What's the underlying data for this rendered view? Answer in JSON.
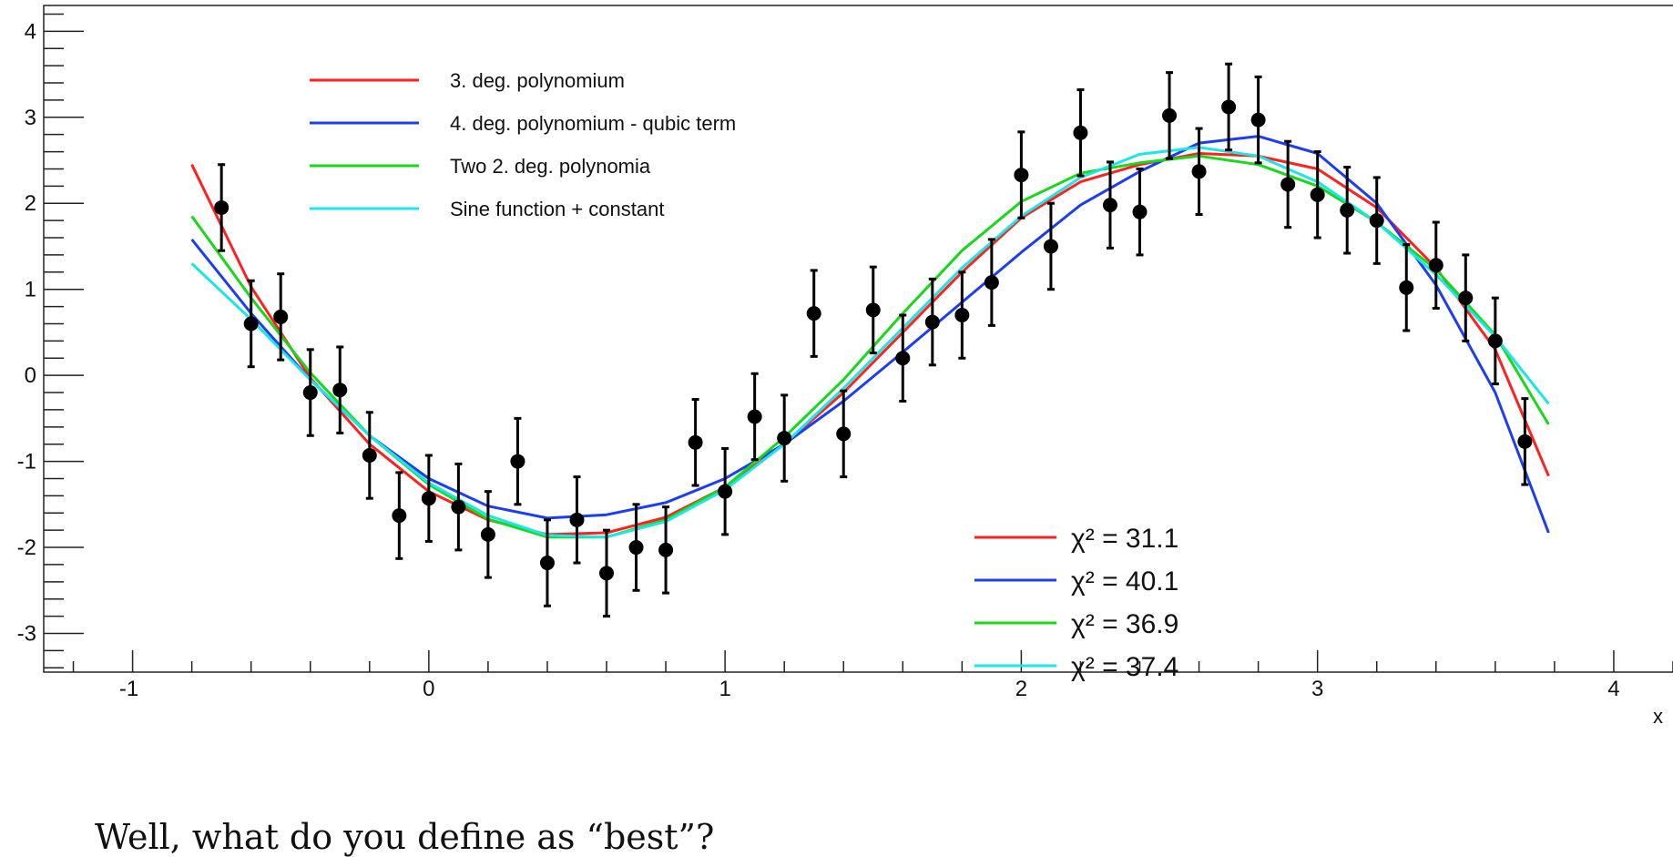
{
  "chart_data": {
    "type": "scatter",
    "x_ticks": [
      -1,
      0,
      1,
      2,
      3,
      4
    ],
    "y_ticks": [
      -3,
      -2,
      -1,
      0,
      1,
      2,
      3,
      4
    ],
    "xlim": [
      -1.3,
      4.2
    ],
    "ylim": [
      -3.45,
      4.3
    ],
    "xlabel": "x",
    "grid": false,
    "legend_placement": "top-left",
    "data_points": [
      {
        "x": -0.7,
        "y": 1.95,
        "err": 0.5
      },
      {
        "x": -0.6,
        "y": 0.6,
        "err": 0.5
      },
      {
        "x": -0.5,
        "y": 0.68,
        "err": 0.5
      },
      {
        "x": -0.4,
        "y": -0.2,
        "err": 0.5
      },
      {
        "x": -0.3,
        "y": -0.17,
        "err": 0.5
      },
      {
        "x": -0.2,
        "y": -0.93,
        "err": 0.5
      },
      {
        "x": -0.1,
        "y": -1.63,
        "err": 0.5
      },
      {
        "x": 0.0,
        "y": -1.43,
        "err": 0.5
      },
      {
        "x": 0.1,
        "y": -1.53,
        "err": 0.5
      },
      {
        "x": 0.2,
        "y": -1.85,
        "err": 0.5
      },
      {
        "x": 0.3,
        "y": -1.0,
        "err": 0.5
      },
      {
        "x": 0.4,
        "y": -2.18,
        "err": 0.5
      },
      {
        "x": 0.5,
        "y": -1.68,
        "err": 0.5
      },
      {
        "x": 0.6,
        "y": -2.3,
        "err": 0.5
      },
      {
        "x": 0.7,
        "y": -2.0,
        "err": 0.5
      },
      {
        "x": 0.8,
        "y": -2.03,
        "err": 0.5
      },
      {
        "x": 0.9,
        "y": -0.78,
        "err": 0.5
      },
      {
        "x": 1.0,
        "y": -1.35,
        "err": 0.5
      },
      {
        "x": 1.1,
        "y": -0.48,
        "err": 0.5
      },
      {
        "x": 1.2,
        "y": -0.73,
        "err": 0.5
      },
      {
        "x": 1.3,
        "y": 0.72,
        "err": 0.5
      },
      {
        "x": 1.4,
        "y": -0.68,
        "err": 0.5
      },
      {
        "x": 1.5,
        "y": 0.76,
        "err": 0.5
      },
      {
        "x": 1.6,
        "y": 0.2,
        "err": 0.5
      },
      {
        "x": 1.7,
        "y": 0.62,
        "err": 0.5
      },
      {
        "x": 1.8,
        "y": 0.7,
        "err": 0.5
      },
      {
        "x": 1.9,
        "y": 1.08,
        "err": 0.5
      },
      {
        "x": 2.0,
        "y": 2.33,
        "err": 0.5
      },
      {
        "x": 2.1,
        "y": 1.5,
        "err": 0.5
      },
      {
        "x": 2.2,
        "y": 2.82,
        "err": 0.5
      },
      {
        "x": 2.3,
        "y": 1.98,
        "err": 0.5
      },
      {
        "x": 2.4,
        "y": 1.9,
        "err": 0.5
      },
      {
        "x": 2.5,
        "y": 3.02,
        "err": 0.5
      },
      {
        "x": 2.6,
        "y": 2.37,
        "err": 0.5
      },
      {
        "x": 2.7,
        "y": 3.12,
        "err": 0.5
      },
      {
        "x": 2.8,
        "y": 2.97,
        "err": 0.5
      },
      {
        "x": 2.9,
        "y": 2.22,
        "err": 0.5
      },
      {
        "x": 3.0,
        "y": 2.1,
        "err": 0.5
      },
      {
        "x": 3.1,
        "y": 1.92,
        "err": 0.5
      },
      {
        "x": 3.2,
        "y": 1.8,
        "err": 0.5
      },
      {
        "x": 3.3,
        "y": 1.02,
        "err": 0.5
      },
      {
        "x": 3.4,
        "y": 1.28,
        "err": 0.5
      },
      {
        "x": 3.5,
        "y": 0.9,
        "err": 0.5
      },
      {
        "x": 3.6,
        "y": 0.4,
        "err": 0.5
      },
      {
        "x": 3.7,
        "y": -0.77,
        "err": 0.5
      }
    ],
    "series": [
      {
        "name": "3. deg. polynomium",
        "color": "#ff2020",
        "chi2_label": "χ² = 31.1",
        "points": [
          [
            -0.8,
            2.45
          ],
          [
            -0.6,
            1.03
          ],
          [
            -0.4,
            -0.03
          ],
          [
            -0.2,
            -0.8
          ],
          [
            0.0,
            -1.35
          ],
          [
            0.2,
            -1.68
          ],
          [
            0.4,
            -1.85
          ],
          [
            0.6,
            -1.83
          ],
          [
            0.8,
            -1.65
          ],
          [
            1.0,
            -1.3
          ],
          [
            1.2,
            -0.8
          ],
          [
            1.4,
            -0.2
          ],
          [
            1.6,
            0.5
          ],
          [
            1.8,
            1.2
          ],
          [
            2.0,
            1.83
          ],
          [
            2.2,
            2.25
          ],
          [
            2.4,
            2.45
          ],
          [
            2.6,
            2.58
          ],
          [
            2.8,
            2.55
          ],
          [
            3.0,
            2.4
          ],
          [
            3.2,
            1.95
          ],
          [
            3.4,
            1.25
          ],
          [
            3.6,
            0.3
          ],
          [
            3.78,
            -1.17
          ]
        ]
      },
      {
        "name": "4. deg. polynomium - qubic term",
        "color": "#1c3df0",
        "chi2_label": "χ² = 40.1",
        "points": [
          [
            -0.8,
            1.58
          ],
          [
            -0.6,
            0.72
          ],
          [
            -0.4,
            -0.05
          ],
          [
            -0.2,
            -0.7
          ],
          [
            0.0,
            -1.2
          ],
          [
            0.2,
            -1.52
          ],
          [
            0.4,
            -1.66
          ],
          [
            0.6,
            -1.62
          ],
          [
            0.8,
            -1.48
          ],
          [
            1.0,
            -1.2
          ],
          [
            1.2,
            -0.8
          ],
          [
            1.4,
            -0.3
          ],
          [
            1.6,
            0.27
          ],
          [
            1.8,
            0.85
          ],
          [
            2.0,
            1.43
          ],
          [
            2.2,
            1.98
          ],
          [
            2.4,
            2.37
          ],
          [
            2.6,
            2.7
          ],
          [
            2.8,
            2.78
          ],
          [
            3.0,
            2.58
          ],
          [
            3.2,
            2.0
          ],
          [
            3.4,
            1.05
          ],
          [
            3.6,
            -0.2
          ],
          [
            3.78,
            -1.83
          ]
        ]
      },
      {
        "name": "Two 2. deg. polynomia",
        "color": "#19d81a",
        "chi2_label": "χ² = 36.9",
        "points": [
          [
            -0.8,
            1.85
          ],
          [
            -0.6,
            0.9
          ],
          [
            -0.4,
            0.03
          ],
          [
            -0.2,
            -0.7
          ],
          [
            0.0,
            -1.27
          ],
          [
            0.2,
            -1.67
          ],
          [
            0.4,
            -1.88
          ],
          [
            0.6,
            -1.88
          ],
          [
            0.8,
            -1.68
          ],
          [
            1.0,
            -1.3
          ],
          [
            1.2,
            -0.72
          ],
          [
            1.4,
            -0.05
          ],
          [
            1.6,
            0.72
          ],
          [
            1.8,
            1.45
          ],
          [
            2.0,
            2.02
          ],
          [
            2.2,
            2.35
          ],
          [
            2.4,
            2.47
          ],
          [
            2.6,
            2.55
          ],
          [
            2.8,
            2.45
          ],
          [
            3.0,
            2.2
          ],
          [
            3.2,
            1.78
          ],
          [
            3.4,
            1.23
          ],
          [
            3.6,
            0.47
          ],
          [
            3.78,
            -0.57
          ]
        ]
      },
      {
        "name": "Sine function + constant",
        "color": "#1ce6e6",
        "chi2_label": "χ² = 37.4",
        "points": [
          [
            -0.8,
            1.3
          ],
          [
            -0.6,
            0.65
          ],
          [
            -0.4,
            -0.05
          ],
          [
            -0.2,
            -0.7
          ],
          [
            0.0,
            -1.25
          ],
          [
            0.2,
            -1.63
          ],
          [
            0.4,
            -1.86
          ],
          [
            0.6,
            -1.88
          ],
          [
            0.8,
            -1.7
          ],
          [
            1.0,
            -1.33
          ],
          [
            1.2,
            -0.8
          ],
          [
            1.4,
            -0.15
          ],
          [
            1.6,
            0.55
          ],
          [
            1.8,
            1.25
          ],
          [
            2.0,
            1.85
          ],
          [
            2.2,
            2.3
          ],
          [
            2.4,
            2.57
          ],
          [
            2.6,
            2.65
          ],
          [
            2.8,
            2.55
          ],
          [
            3.0,
            2.25
          ],
          [
            3.2,
            1.78
          ],
          [
            3.4,
            1.17
          ],
          [
            3.6,
            0.45
          ],
          [
            3.78,
            -0.33
          ]
        ]
      }
    ]
  },
  "caption": "Well, what do you define as “best”?"
}
